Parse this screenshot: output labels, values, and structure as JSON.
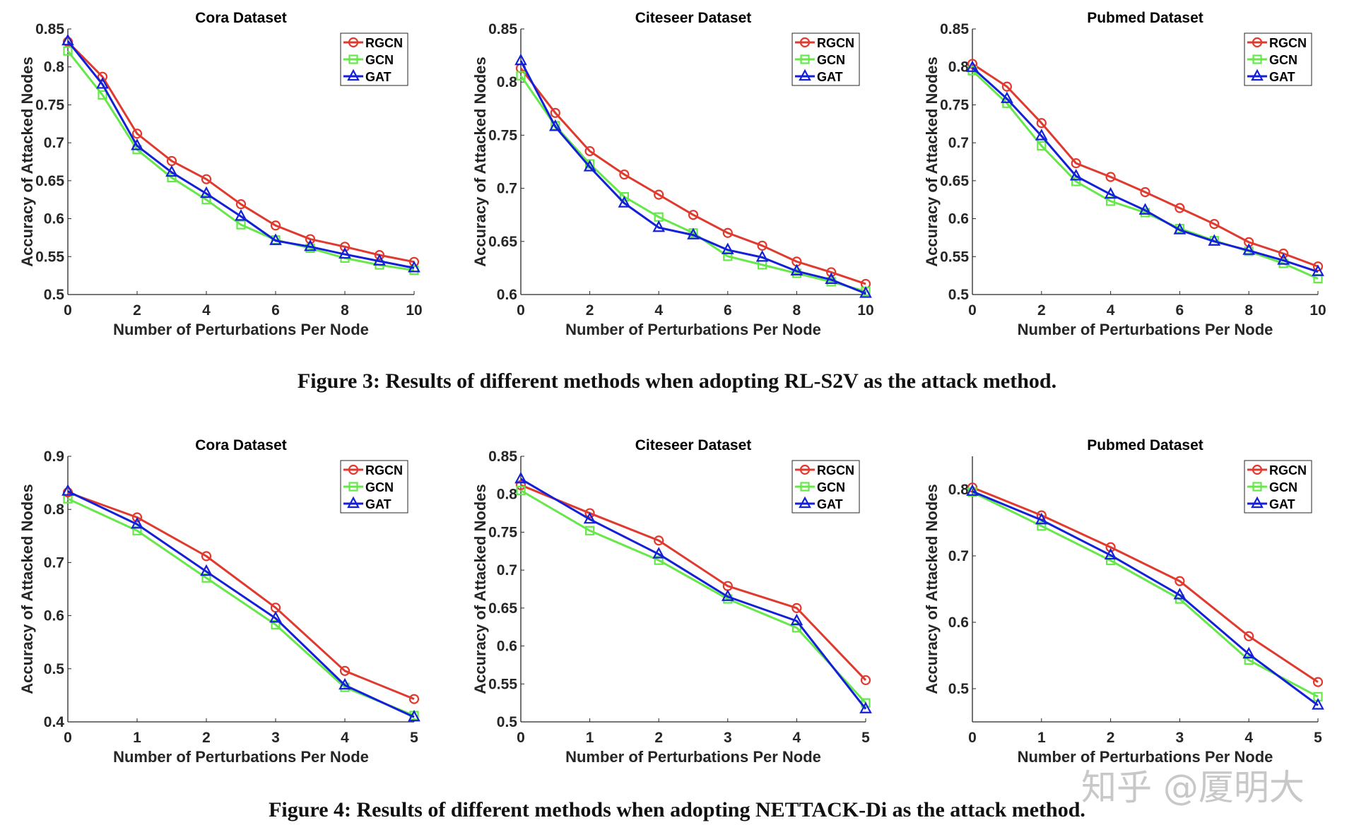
{
  "figures": [
    {
      "caption": "Figure 3: Results of different methods when adopting RL-S2V as the attack method."
    },
    {
      "caption": "Figure 4: Results of different methods when adopting NETTACK-Di as the attack method."
    }
  ],
  "watermark": "知乎 @厦明大",
  "colors": {
    "RGCN": "#e03a2f",
    "GCN": "#66e84a",
    "GAT": "#1420d8"
  },
  "chart_data": [
    {
      "type": "line",
      "figure": 0,
      "title": "Cora Dataset",
      "xlabel": "Number of Perturbations Per Node",
      "ylabel": "Accuracy of Attacked Nodes",
      "x": [
        0,
        1,
        2,
        3,
        4,
        5,
        6,
        7,
        8,
        9,
        10
      ],
      "xticks": [
        0,
        2,
        4,
        6,
        8,
        10
      ],
      "xlim": [
        0,
        10
      ],
      "ylim": [
        0.5,
        0.85
      ],
      "yticks": [
        "0.5",
        "0.55",
        "0.6",
        "0.65",
        "0.7",
        "0.75",
        "0.8",
        "0.85"
      ],
      "legend": "top-right",
      "grid": false,
      "series": [
        {
          "name": "RGCN",
          "marker": "circle",
          "values": [
            0.833,
            0.787,
            0.712,
            0.676,
            0.652,
            0.619,
            0.591,
            0.573,
            0.563,
            0.552,
            0.543
          ]
        },
        {
          "name": "GCN",
          "marker": "square",
          "values": [
            0.821,
            0.763,
            0.691,
            0.654,
            0.625,
            0.592,
            0.572,
            0.561,
            0.548,
            0.539,
            0.532
          ]
        },
        {
          "name": "GAT",
          "marker": "triangle",
          "values": [
            0.834,
            0.777,
            0.696,
            0.661,
            0.633,
            0.603,
            0.571,
            0.563,
            0.553,
            0.544,
            0.535
          ]
        }
      ]
    },
    {
      "type": "line",
      "figure": 0,
      "title": "Citeseer Dataset",
      "xlabel": "Number of Perturbations Per Node",
      "ylabel": "Accuracy of Attacked Nodes",
      "x": [
        0,
        1,
        2,
        3,
        4,
        5,
        6,
        7,
        8,
        9,
        10
      ],
      "xticks": [
        0,
        2,
        4,
        6,
        8,
        10
      ],
      "xlim": [
        0,
        10
      ],
      "ylim": [
        0.6,
        0.85
      ],
      "yticks": [
        "0.6",
        "0.65",
        "0.7",
        "0.75",
        "0.8",
        "0.85"
      ],
      "legend": "top-right",
      "grid": false,
      "series": [
        {
          "name": "RGCN",
          "marker": "circle",
          "values": [
            0.813,
            0.771,
            0.735,
            0.713,
            0.694,
            0.675,
            0.658,
            0.646,
            0.631,
            0.621,
            0.61
          ]
        },
        {
          "name": "GCN",
          "marker": "square",
          "values": [
            0.806,
            0.759,
            0.723,
            0.692,
            0.673,
            0.658,
            0.636,
            0.628,
            0.62,
            0.612,
            0.603
          ]
        },
        {
          "name": "GAT",
          "marker": "triangle",
          "values": [
            0.82,
            0.758,
            0.72,
            0.686,
            0.663,
            0.656,
            0.642,
            0.635,
            0.622,
            0.614,
            0.601
          ]
        }
      ]
    },
    {
      "type": "line",
      "figure": 0,
      "title": "Pubmed Dataset",
      "xlabel": "Number of Perturbations Per Node",
      "ylabel": "Accuracy of Attacked Nodes",
      "x": [
        0,
        1,
        2,
        3,
        4,
        5,
        6,
        7,
        8,
        9,
        10
      ],
      "xticks": [
        0,
        2,
        4,
        6,
        8,
        10
      ],
      "xlim": [
        0,
        10
      ],
      "ylim": [
        0.5,
        0.85
      ],
      "yticks": [
        "0.5",
        "0.55",
        "0.6",
        "0.65",
        "0.7",
        "0.75",
        "0.8",
        "0.85"
      ],
      "legend": "top-right",
      "grid": false,
      "series": [
        {
          "name": "RGCN",
          "marker": "circle",
          "values": [
            0.804,
            0.774,
            0.726,
            0.673,
            0.655,
            0.635,
            0.614,
            0.593,
            0.569,
            0.554,
            0.537
          ]
        },
        {
          "name": "GCN",
          "marker": "square",
          "values": [
            0.795,
            0.752,
            0.696,
            0.649,
            0.623,
            0.608,
            0.587,
            0.571,
            0.557,
            0.541,
            0.521
          ]
        },
        {
          "name": "GAT",
          "marker": "triangle",
          "values": [
            0.799,
            0.758,
            0.709,
            0.656,
            0.632,
            0.611,
            0.585,
            0.57,
            0.558,
            0.545,
            0.53
          ]
        }
      ]
    },
    {
      "type": "line",
      "figure": 1,
      "title": "Cora Dataset",
      "xlabel": "Number of Perturbations Per Node",
      "ylabel": "Accuracy of Attacked Nodes",
      "x": [
        0,
        1,
        2,
        3,
        4,
        5
      ],
      "xticks": [
        0,
        1,
        2,
        3,
        4,
        5
      ],
      "xlim": [
        0,
        5
      ],
      "ylim": [
        0.4,
        0.9
      ],
      "yticks": [
        "0.4",
        "0.5",
        "0.6",
        "0.7",
        "0.8",
        "0.9"
      ],
      "legend": "top-right",
      "grid": false,
      "series": [
        {
          "name": "RGCN",
          "marker": "circle",
          "values": [
            0.832,
            0.785,
            0.712,
            0.615,
            0.496,
            0.443
          ]
        },
        {
          "name": "GCN",
          "marker": "square",
          "values": [
            0.82,
            0.76,
            0.671,
            0.583,
            0.465,
            0.412
          ]
        },
        {
          "name": "GAT",
          "marker": "triangle",
          "values": [
            0.834,
            0.772,
            0.683,
            0.595,
            0.469,
            0.409
          ]
        }
      ]
    },
    {
      "type": "line",
      "figure": 1,
      "title": "Citeseer Dataset",
      "xlabel": "Number of Perturbations Per Node",
      "ylabel": "Accuracy of Attacked Nodes",
      "x": [
        0,
        1,
        2,
        3,
        4,
        5
      ],
      "xticks": [
        0,
        1,
        2,
        3,
        4,
        5
      ],
      "xlim": [
        0,
        5
      ],
      "ylim": [
        0.5,
        0.85
      ],
      "yticks": [
        "0.5",
        "0.55",
        "0.6",
        "0.65",
        "0.7",
        "0.75",
        "0.8",
        "0.85"
      ],
      "legend": "top-right",
      "grid": false,
      "series": [
        {
          "name": "RGCN",
          "marker": "circle",
          "values": [
            0.812,
            0.775,
            0.739,
            0.679,
            0.65,
            0.555
          ]
        },
        {
          "name": "GCN",
          "marker": "square",
          "values": [
            0.805,
            0.752,
            0.713,
            0.662,
            0.624,
            0.525
          ]
        },
        {
          "name": "GAT",
          "marker": "triangle",
          "values": [
            0.82,
            0.767,
            0.721,
            0.665,
            0.633,
            0.517
          ]
        }
      ]
    },
    {
      "type": "line",
      "figure": 1,
      "title": "Pubmed Dataset",
      "xlabel": "Number of Perturbations Per Node",
      "ylabel": "Accuracy of Attacked Nodes",
      "x": [
        0,
        1,
        2,
        3,
        4,
        5
      ],
      "xticks": [
        0,
        1,
        2,
        3,
        4,
        5
      ],
      "xlim": [
        0,
        5
      ],
      "ylim": [
        0.45,
        0.85
      ],
      "yticks": [
        "0.5",
        "0.6",
        "0.7",
        "0.8"
      ],
      "legend": "top-right",
      "grid": false,
      "series": [
        {
          "name": "RGCN",
          "marker": "circle",
          "values": [
            0.803,
            0.761,
            0.713,
            0.662,
            0.579,
            0.51
          ]
        },
        {
          "name": "GCN",
          "marker": "square",
          "values": [
            0.796,
            0.745,
            0.693,
            0.635,
            0.543,
            0.488
          ]
        },
        {
          "name": "GAT",
          "marker": "triangle",
          "values": [
            0.797,
            0.754,
            0.701,
            0.641,
            0.552,
            0.475
          ]
        }
      ]
    }
  ]
}
